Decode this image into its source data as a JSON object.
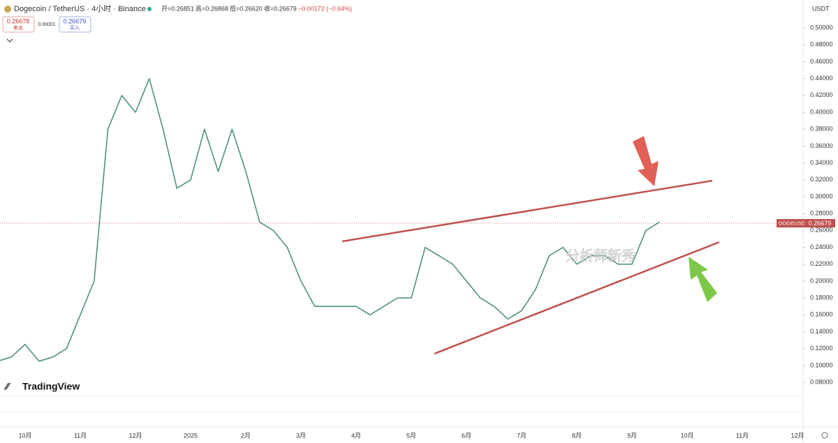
{
  "chart_data": {
    "type": "line",
    "title": "Dogecoin / TetherUS · 4小时 · Binance",
    "ohlc": {
      "open": "开=0.26851",
      "high": "高=0.26868",
      "low": "低=0.26620",
      "close": "收=0.26679",
      "change": "−0.00172 (−0.64%)"
    },
    "sell": {
      "price": "0.26678",
      "label": "卖出"
    },
    "spread": "0.00001",
    "buy": {
      "price": "0.26679",
      "label": "买入"
    },
    "y_axis_unit": "USDT",
    "price_tag": {
      "symbol": "DOGEUSDT",
      "price": "0.26679"
    },
    "brand": "TradingView",
    "watermark": "分析师新秀",
    "categories": [
      null,
      null,
      "10月",
      null,
      null,
      null,
      "11月",
      null,
      null,
      null,
      "12月",
      null,
      null,
      null,
      "2025",
      null,
      null,
      null,
      "2月",
      null,
      null,
      null,
      "3月",
      null,
      null,
      null,
      "4月",
      null,
      null,
      null,
      "5月",
      null,
      null,
      null,
      "6月",
      null,
      null,
      null,
      "7月",
      null,
      null,
      null,
      "8月",
      null,
      null,
      null,
      "9月",
      null,
      null,
      null,
      "10月",
      null,
      null,
      null,
      "11月",
      null,
      null,
      null,
      "12月"
    ],
    "series": [
      {
        "name": "DOGEUSDT",
        "color": "#4f8f7f",
        "values": [
          0.105,
          0.11,
          0.125,
          0.105,
          0.11,
          0.12,
          0.16,
          0.2,
          0.38,
          0.42,
          0.4,
          0.44,
          0.38,
          0.31,
          0.32,
          0.38,
          0.33,
          0.38,
          0.33,
          0.27,
          0.26,
          0.24,
          0.2,
          0.17,
          0.17,
          0.17,
          0.17,
          0.16,
          0.17,
          0.18,
          0.18,
          0.24,
          0.23,
          0.22,
          0.2,
          0.18,
          0.17,
          0.155,
          0.165,
          0.19,
          0.23,
          0.24,
          0.22,
          0.23,
          0.23,
          0.22,
          0.22,
          0.26,
          0.27,
          null,
          null,
          null,
          null,
          null,
          null,
          null,
          null,
          null,
          null
        ]
      }
    ],
    "ylim": [
      0.066,
      0.51
    ],
    "yticks": [
      {
        "value": 0.08,
        "label": "0.08000"
      },
      {
        "value": 0.1,
        "label": "0.10000"
      },
      {
        "value": 0.12,
        "label": "0.12000"
      },
      {
        "value": 0.14,
        "label": "0.14000"
      },
      {
        "value": 0.16,
        "label": "0.16000"
      },
      {
        "value": 0.18,
        "label": "0.18000"
      },
      {
        "value": 0.2,
        "label": "0.20000"
      },
      {
        "value": 0.22,
        "label": "0.22000"
      },
      {
        "value": 0.24,
        "label": "0.24000"
      },
      {
        "value": 0.26,
        "label": "0.26000"
      },
      {
        "value": 0.28,
        "label": "0.28000"
      },
      {
        "value": 0.3,
        "label": "0.30000"
      },
      {
        "value": 0.32,
        "label": "0.32000"
      },
      {
        "value": 0.34,
        "label": "0.34000"
      },
      {
        "value": 0.36,
        "label": "0.36000"
      },
      {
        "value": 0.38,
        "label": "0.38000"
      },
      {
        "value": 0.4,
        "label": "0.40000"
      },
      {
        "value": 0.42,
        "label": "0.42000"
      },
      {
        "value": 0.44,
        "label": "0.44000"
      },
      {
        "value": 0.46,
        "label": "0.46000"
      },
      {
        "value": 0.48,
        "label": "0.48000"
      },
      {
        "value": 0.5,
        "label": "0.50000"
      }
    ],
    "grid": false
  }
}
